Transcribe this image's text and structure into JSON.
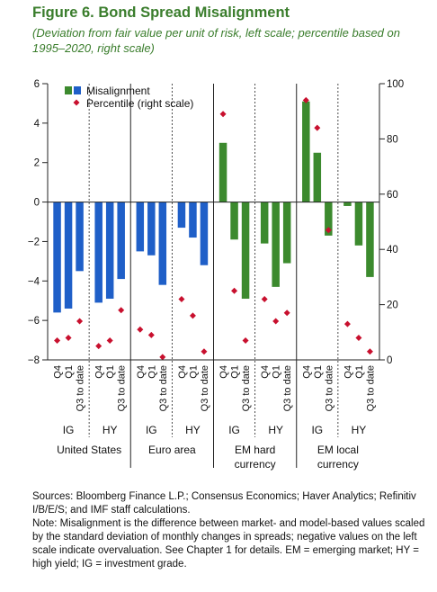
{
  "figure": {
    "title": "Figure 6. Bond Spread Misalignment",
    "subtitle": "(Deviation from fair value per unit of risk, left scale; percentile based on 1995–2020, right scale)"
  },
  "notes": {
    "sources": "Sources: Bloomberg Finance L.P.; Consensus Economics; Haver Analytics; Refinitiv I/B/E/S; and IMF staff calculations.",
    "note": "Note: Misalignment is the difference between market- and model-based values scaled by the standard deviation of monthly changes in spreads; negative values on the left scale indicate overvaluation. See Chapter 1 for details. EM = emerging market; HY = high yield; IG = investment grade."
  },
  "chart_data": {
    "type": "bar",
    "legend": [
      "Misalignment",
      "Percentile (right scale)"
    ],
    "left_axis": {
      "ylim": [
        -8,
        6
      ],
      "ticks": [
        -8,
        -6,
        -4,
        -2,
        0,
        2,
        4,
        6
      ]
    },
    "right_axis": {
      "ylim": [
        0,
        100
      ],
      "ticks": [
        0,
        20,
        40,
        60,
        80,
        100
      ]
    },
    "period_labels": [
      "Q4",
      "Q1",
      "Q3 to date"
    ],
    "colors": {
      "developed": "#1f5fc8",
      "emerging": "#3c8a2e",
      "percentile": "#c8102e"
    },
    "groups": [
      {
        "region": "United States",
        "region_lines": [
          "United States"
        ],
        "theme": "developed",
        "segments": [
          {
            "label": "IG",
            "misalignment": [
              -5.6,
              -5.4,
              -3.5
            ],
            "percentile": [
              7,
              8,
              14
            ]
          },
          {
            "label": "HY",
            "misalignment": [
              -5.1,
              -4.9,
              -3.9
            ],
            "percentile": [
              5,
              7,
              18
            ]
          }
        ]
      },
      {
        "region": "Euro area",
        "region_lines": [
          "Euro area"
        ],
        "theme": "developed",
        "segments": [
          {
            "label": "IG",
            "misalignment": [
              -2.5,
              -2.7,
              -4.2
            ],
            "percentile": [
              11,
              9,
              1
            ]
          },
          {
            "label": "HY",
            "misalignment": [
              -1.3,
              -1.8,
              -3.2
            ],
            "percentile": [
              22,
              16,
              3
            ]
          }
        ]
      },
      {
        "region": "EM hard currency",
        "region_lines": [
          "EM hard",
          "currency"
        ],
        "theme": "emerging",
        "segments": [
          {
            "label": "IG",
            "misalignment": [
              3.0,
              -1.9,
              -4.9
            ],
            "percentile": [
              89,
              25,
              7
            ]
          },
          {
            "label": "HY",
            "misalignment": [
              -2.1,
              -4.3,
              -3.1
            ],
            "percentile": [
              22,
              14,
              17
            ]
          }
        ]
      },
      {
        "region": "EM local currency",
        "region_lines": [
          "EM local",
          "currency"
        ],
        "theme": "emerging",
        "segments": [
          {
            "label": "IG",
            "misalignment": [
              5.1,
              2.5,
              -1.7
            ],
            "percentile": [
              94,
              84,
              47
            ]
          },
          {
            "label": "HY",
            "misalignment": [
              -0.2,
              -2.2,
              -3.8
            ],
            "percentile": [
              13,
              8,
              3
            ]
          }
        ]
      }
    ]
  }
}
